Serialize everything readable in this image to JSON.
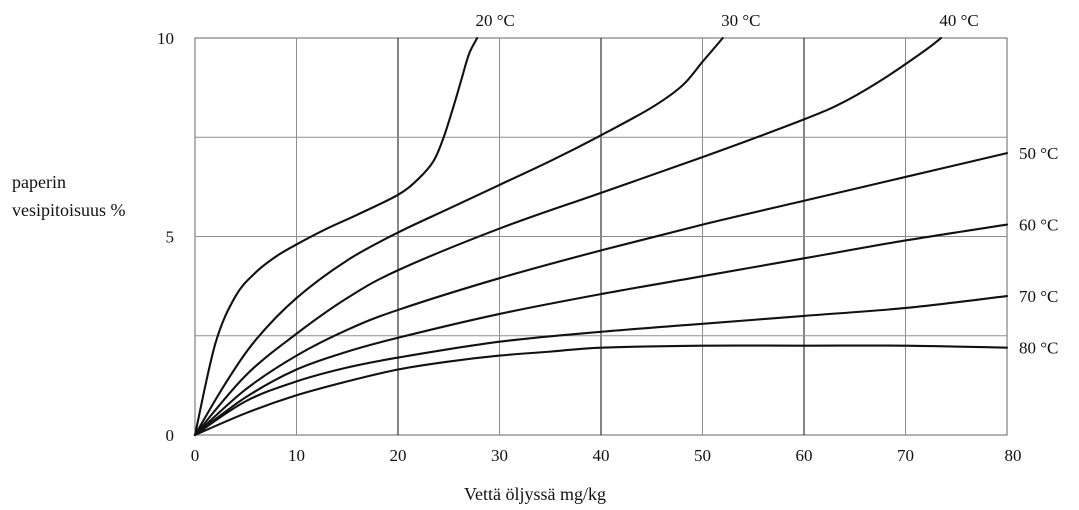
{
  "chart_data": {
    "type": "line",
    "title": "",
    "xlabel": "Vettä öljyssä mg/kg",
    "ylabel_lines": [
      "paperin",
      "vesipitoisuus %"
    ],
    "xlim": [
      0,
      80
    ],
    "ylim": [
      0,
      10
    ],
    "x_ticks": [
      0,
      10,
      20,
      30,
      40,
      50,
      60,
      70,
      80
    ],
    "x_tick_labels": [
      "0",
      "10",
      "20",
      "30",
      "40",
      "50",
      "60",
      "70",
      "80"
    ],
    "y_tick_labels": [
      {
        "value": 0,
        "label": "0"
      },
      {
        "value": 5,
        "label": "5"
      },
      {
        "value": 10,
        "label": "10"
      }
    ],
    "horizontal_gridlines": [
      2.5,
      5,
      7.5
    ],
    "grid": true,
    "series": [
      {
        "name": "20 °C",
        "x": [
          0,
          2,
          4,
          6,
          8,
          10,
          13,
          16,
          20,
          22,
          23.5,
          24.5,
          25.5,
          26.3,
          27,
          27.8
        ],
        "y": [
          0,
          2.3,
          3.5,
          4.1,
          4.5,
          4.8,
          5.2,
          5.55,
          6.05,
          6.45,
          6.9,
          7.5,
          8.3,
          9.0,
          9.6,
          10.0
        ]
      },
      {
        "name": "30 °C",
        "x": [
          0,
          3,
          6,
          10,
          15,
          20,
          25,
          30,
          35,
          40,
          45,
          48,
          50,
          52
        ],
        "y": [
          0,
          1.3,
          2.4,
          3.45,
          4.4,
          5.1,
          5.7,
          6.3,
          6.9,
          7.55,
          8.25,
          8.8,
          9.4,
          10.0
        ]
      },
      {
        "name": "40 °C",
        "x": [
          0,
          5,
          10,
          15,
          20,
          30,
          40,
          50,
          60,
          64,
          68,
          72,
          73.5
        ],
        "y": [
          0,
          1.5,
          2.55,
          3.45,
          4.15,
          5.2,
          6.1,
          7.0,
          7.95,
          8.4,
          9.0,
          9.7,
          10.0
        ]
      },
      {
        "name": "50 °C",
        "x": [
          0,
          5,
          10,
          15,
          20,
          30,
          40,
          50,
          60,
          70,
          80
        ],
        "y": [
          0,
          1.15,
          2.0,
          2.65,
          3.15,
          3.95,
          4.65,
          5.3,
          5.9,
          6.5,
          7.1
        ]
      },
      {
        "name": "60 °C",
        "x": [
          0,
          5,
          10,
          15,
          20,
          30,
          40,
          50,
          60,
          70,
          80
        ],
        "y": [
          0,
          0.95,
          1.65,
          2.1,
          2.45,
          3.05,
          3.55,
          4.0,
          4.45,
          4.9,
          5.3
        ]
      },
      {
        "name": "70 °C",
        "x": [
          0,
          5,
          10,
          15,
          20,
          30,
          40,
          50,
          60,
          70,
          80
        ],
        "y": [
          0,
          0.85,
          1.35,
          1.7,
          1.95,
          2.35,
          2.6,
          2.8,
          3.0,
          3.2,
          3.5
        ]
      },
      {
        "name": "80 °C",
        "x": [
          0,
          5,
          10,
          15,
          20,
          25,
          30,
          35,
          40,
          50,
          60,
          70,
          80
        ],
        "y": [
          0,
          0.55,
          1.0,
          1.35,
          1.65,
          1.85,
          2.0,
          2.1,
          2.2,
          2.25,
          2.25,
          2.25,
          2.2
        ]
      }
    ]
  }
}
